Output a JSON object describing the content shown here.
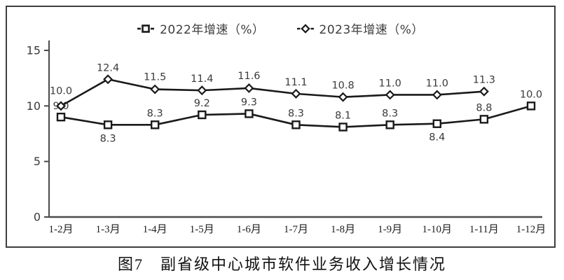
{
  "accent_colors": {
    "line": "#1a1a1a",
    "text": "#3a3a3a",
    "axis": "#4a4a4a",
    "frame": "#3f3f3f",
    "marker_fill": "#ffffff"
  },
  "legend": {
    "items": [
      {
        "label": "2022年增速（%）",
        "marker": "square-marker"
      },
      {
        "label": "2023年增速（%）",
        "marker": "diamond-marker"
      }
    ]
  },
  "caption": "图7　副省级中心城市软件业务收入增长情况",
  "chart_data": {
    "type": "line",
    "title": "图7　副省级中心城市软件业务收入增长情况",
    "categories": [
      "1-2月",
      "1-3月",
      "1-4月",
      "1-5月",
      "1-6月",
      "1-7月",
      "1-8月",
      "1-9月",
      "1-10月",
      "1-11月",
      "1-12月"
    ],
    "series": [
      {
        "name": "2022年增速（%）",
        "marker": "square",
        "values": [
          9.0,
          8.3,
          8.3,
          9.2,
          9.3,
          8.3,
          8.1,
          8.3,
          8.4,
          8.8,
          10.0
        ],
        "label_offsets": [
          [
            0,
            -11
          ],
          [
            0,
            24
          ],
          [
            0,
            -12
          ],
          [
            0,
            -12
          ],
          [
            0,
            -12
          ],
          [
            0,
            -12
          ],
          [
            0,
            -12
          ],
          [
            0,
            -12
          ],
          [
            0,
            24
          ],
          [
            0,
            -12
          ],
          [
            0,
            -12
          ]
        ]
      },
      {
        "name": "2023年增速（%）",
        "marker": "diamond",
        "values": [
          10.0,
          12.4,
          11.5,
          11.4,
          11.6,
          11.1,
          10.8,
          11.0,
          11.0,
          11.3
        ],
        "label_offsets": [
          [
            0,
            -17
          ],
          [
            0,
            -12
          ],
          [
            0,
            -13
          ],
          [
            0,
            -12
          ],
          [
            0,
            -13
          ],
          [
            0,
            -12
          ],
          [
            0,
            -12
          ],
          [
            0,
            -12
          ],
          [
            0,
            -12
          ],
          [
            0,
            -12
          ]
        ]
      }
    ],
    "y_ticks": [
      0,
      5,
      10,
      15
    ],
    "ylim": [
      0,
      15.9
    ],
    "xlabel": "",
    "ylabel": "",
    "grid": false,
    "legend_position": "top",
    "label_decimals": 1
  }
}
